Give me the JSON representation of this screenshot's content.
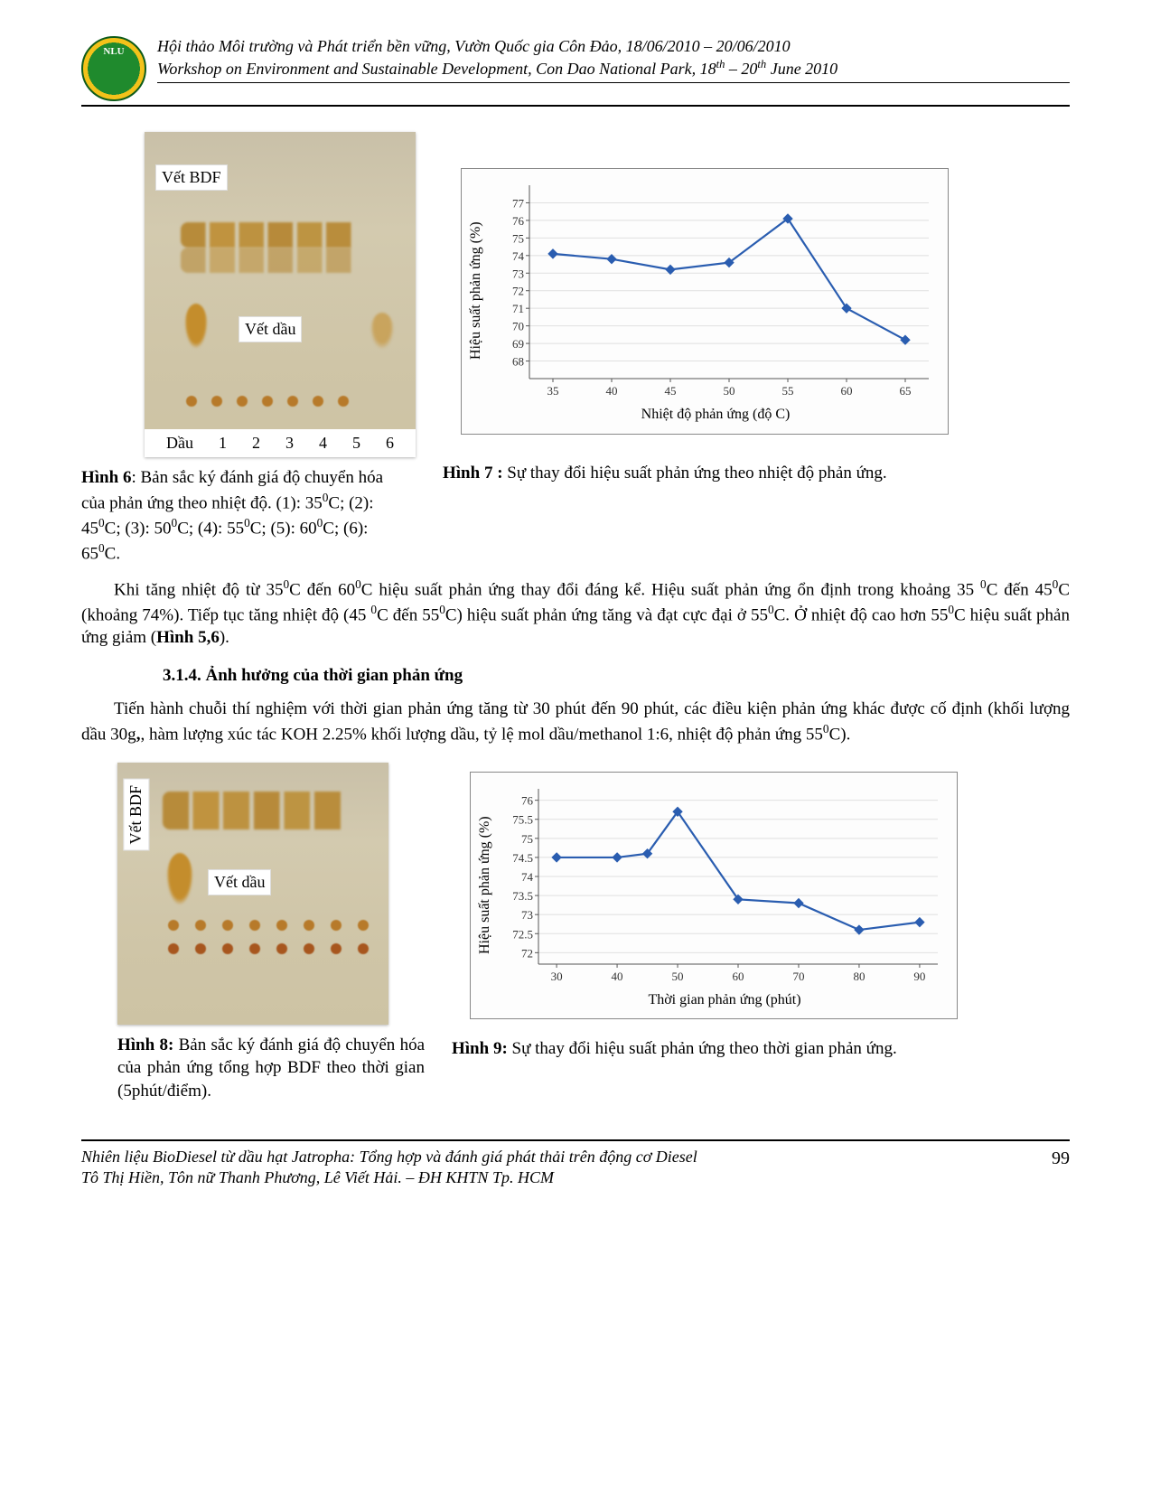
{
  "header": {
    "line1": "Hội thảo Môi trường và Phát triển bền vững, Vườn Quốc gia Côn Đảo, 18/06/2010 – 20/06/2010",
    "line2_a": "Workshop on Environment and Sustainable Development, Con Dao National Park, 18",
    "line2_sup1": "th",
    "line2_b": " – 20",
    "line2_sup2": "th",
    "line2_c": " June 2010"
  },
  "fig6": {
    "plate_labels": {
      "bdf": "Vết BDF",
      "dau": "Vết dầu"
    },
    "bottom_labels": [
      "Dầu",
      "1",
      "2",
      "3",
      "4",
      "5",
      "6"
    ],
    "caption_bold": "Hình 6",
    "caption_rest_a": ": Bản sắc ký đánh giá độ chuyển hóa của phản ứng theo nhiệt độ. (1): 35",
    "caption_rest_b": "C; (2): 45",
    "caption_rest_c": "C; (3): 50",
    "caption_rest_d": "C; (4): 55",
    "caption_rest_e": "C; (5): 60",
    "caption_rest_f": "C; (6): 65",
    "caption_rest_g": "C."
  },
  "fig7": {
    "type": "line",
    "xlabel": "Nhiệt độ phản ứng (độ C)",
    "ylabel": "Hiệu suất phản ứng (%)",
    "xlim": [
      33,
      67
    ],
    "ylim": [
      67,
      78
    ],
    "xticks": [
      35,
      40,
      45,
      50,
      55,
      60,
      65
    ],
    "yticks": [
      68,
      69,
      70,
      71,
      72,
      73,
      74,
      75,
      76,
      77
    ],
    "line_color": "#2a5db0",
    "marker_color": "#2a5db0",
    "background_color": "#ffffff",
    "grid_color": "#e0e0e0",
    "series": {
      "x": [
        35,
        40,
        45,
        50,
        55,
        60,
        65
      ],
      "y": [
        74.1,
        73.8,
        73.2,
        73.6,
        76.1,
        71.0,
        69.2
      ]
    },
    "caption_bold": "Hình 7 :",
    "caption_rest": " Sự thay đổi hiệu suất phản ứng theo nhiệt độ phản ứng."
  },
  "para1": {
    "a": "Khi tăng nhiệt độ từ 35",
    "b": "C đến 60",
    "c": "C hiệu suất phản ứng thay đổi đáng kể. Hiệu suất phản ứng ổn định trong khoảng 35 ",
    "d": "C đến 45",
    "e": "C (khoảng 74%). Tiếp tục tăng nhiệt độ (45 ",
    "f": "C đến 55",
    "g": "C) hiệu suất phản ứng tăng và đạt cực đại ở 55",
    "h": "C. Ở nhiệt độ cao hơn 55",
    "i": "C hiệu suất phản ứng giảm (",
    "ref": "Hình 5,6",
    "j": ")."
  },
  "section314": "3.1.4. Ảnh hưởng của thời gian phản ứng",
  "para2": {
    "a": "Tiến hành chuỗi thí nghiệm với thời gian phản ứng tăng từ 30 phút đến 90 phút, các điều kiện phản ứng khác được cố định (khối lượng dầu 30g",
    "b": ", hàm lượng xúc tác KOH 2.25% khối lượng dầu, tỷ lệ mol dầu/methanol 1:6, nhiệt độ phản ứng 55",
    "c": "C)."
  },
  "fig8": {
    "plate_labels": {
      "bdf": "Vết BDF",
      "dau": "Vết dầu"
    },
    "caption_bold": "Hình 8:",
    "caption_rest": " Bản sắc ký đánh giá độ chuyển hóa của phản ứng tổng hợp BDF theo thời gian (5phút/điểm)."
  },
  "fig9": {
    "type": "line",
    "xlabel": "Thời gian phản ứng (phút)",
    "ylabel": "Hiệu suất phản ứng (%)",
    "xlim": [
      27,
      93
    ],
    "ylim": [
      71.7,
      76.3
    ],
    "xticks": [
      30,
      40,
      50,
      60,
      70,
      80,
      90
    ],
    "yticks": [
      72,
      72.5,
      73,
      73.5,
      74,
      74.5,
      75,
      75.5,
      76
    ],
    "line_color": "#2a5db0",
    "marker_color": "#2a5db0",
    "background_color": "#ffffff",
    "grid_color": "#e0e0e0",
    "series": {
      "x": [
        30,
        40,
        45,
        50,
        60,
        70,
        80,
        90
      ],
      "y": [
        74.5,
        74.5,
        74.6,
        75.7,
        73.4,
        73.3,
        72.6,
        72.8
      ]
    },
    "caption_bold": "Hình 9:",
    "caption_rest": " Sự thay đổi hiệu suất phản ứng theo thời gian phản ứng."
  },
  "footer": {
    "line1": "Nhiên liệu BioDiesel từ dầu hạt Jatropha: Tổng hợp và đánh giá phát thải trên động cơ Diesel",
    "line2": "Tô Thị Hiền, Tôn nữ Thanh Phương, Lê Viết Hải. – ĐH KHTN Tp. HCM",
    "page": "99"
  },
  "sup0": "0"
}
